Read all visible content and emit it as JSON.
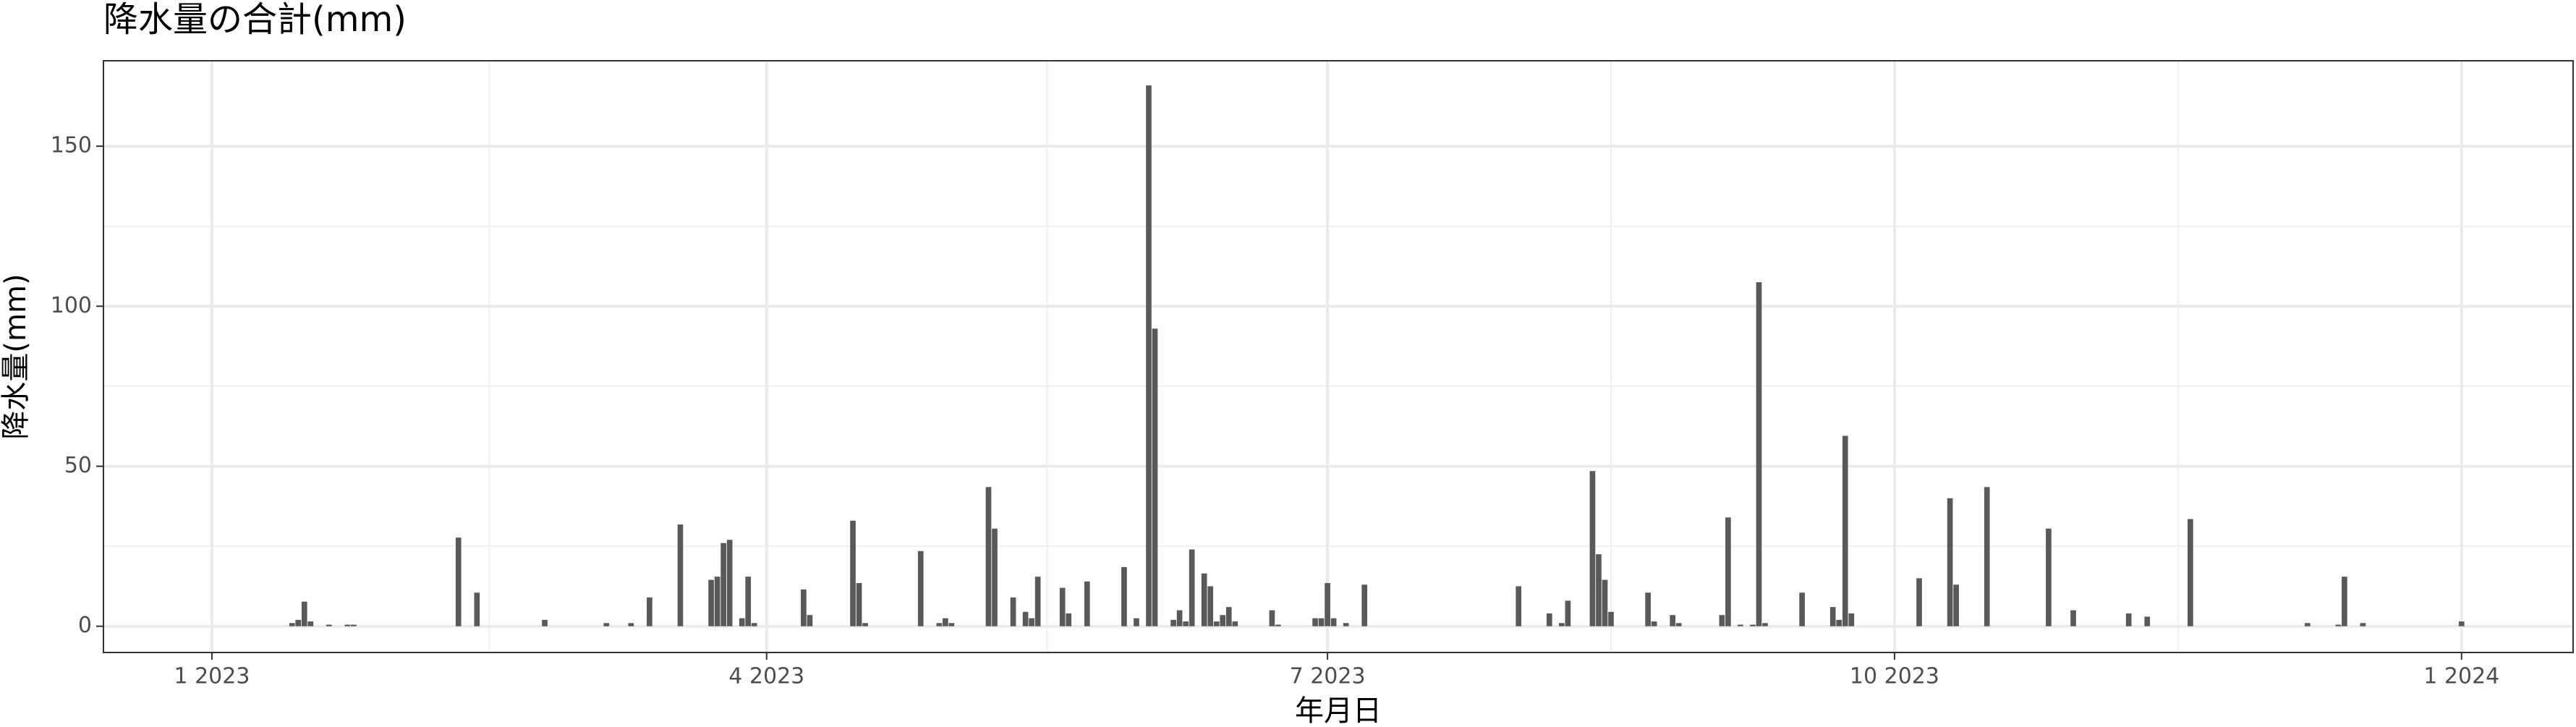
{
  "chart_data": {
    "type": "bar",
    "title": "降水量の合計(mm)",
    "x_label": "年月日",
    "y_label": "降水量(mm)",
    "color": "#595959",
    "grid": true,
    "x": [
      13,
      14,
      15,
      16,
      19,
      22,
      23,
      40,
      43,
      54,
      64,
      68,
      71,
      76,
      81,
      82,
      83,
      84,
      86,
      87,
      88,
      96,
      97,
      104,
      105,
      106,
      115,
      118,
      119,
      120,
      126,
      127,
      130,
      132,
      133,
      134,
      138,
      139,
      142,
      148,
      150,
      152,
      153,
      156,
      157,
      158,
      159,
      161,
      162,
      163,
      164,
      165,
      166,
      172,
      173,
      179,
      180,
      181,
      182,
      184,
      187,
      212,
      217,
      219,
      220,
      224,
      225,
      226,
      227,
      233,
      234,
      237,
      238,
      245,
      246,
      248,
      250,
      251,
      252,
      258,
      263,
      264,
      265,
      266,
      277,
      282,
      283,
      288,
      298,
      302,
      311,
      314,
      321,
      340,
      345,
      346,
      349,
      365
    ],
    "values": [
      1,
      2,
      7.7,
      1.5,
      0.5,
      0.5,
      0.5,
      27.7,
      10.5,
      2,
      1,
      1,
      9,
      31.8,
      14.5,
      15.5,
      26,
      27,
      2.5,
      15.5,
      1,
      11.5,
      3.5,
      33,
      13.5,
      1,
      23.5,
      1,
      2.5,
      1,
      43.5,
      30.5,
      9,
      4.5,
      2.5,
      15.5,
      12,
      4,
      14,
      18.5,
      2.5,
      169,
      93,
      2,
      5,
      1.5,
      24,
      16.5,
      12.5,
      1.5,
      3.5,
      6,
      1.5,
      5,
      0.5,
      2.5,
      2.5,
      13.5,
      2.5,
      1,
      13,
      12.5,
      4,
      1,
      8,
      48.5,
      22.5,
      14.5,
      4.5,
      10.5,
      1.5,
      3.5,
      1,
      3.5,
      34,
      0.5,
      0.5,
      107.5,
      1,
      10.5,
      6,
      2,
      59.5,
      4,
      15,
      40,
      13,
      43.5,
      30.5,
      5,
      4,
      3,
      33.5,
      1,
      0.5,
      15.5,
      1,
      1.5
    ],
    "xlim": [
      -17.6,
      383.1
    ],
    "xticks": [
      {
        "value": 0,
        "label": "1 2023"
      },
      {
        "value": 90,
        "label": "4 2023"
      },
      {
        "value": 181,
        "label": "7 2023"
      },
      {
        "value": 273,
        "label": "10 2023"
      },
      {
        "value": 365,
        "label": "1 2024"
      }
    ],
    "ylim": [
      -8.2,
      176.7
    ],
    "yticks": [
      0,
      50,
      100,
      150
    ]
  }
}
